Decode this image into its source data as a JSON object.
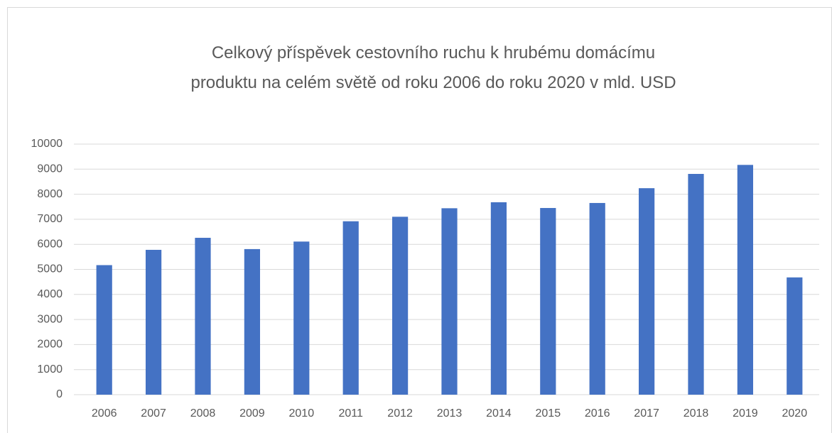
{
  "chart_data": {
    "type": "bar",
    "title": "Celkový příspěvek cestovního ruchu k hrubému domácímu produktu na celém světě od roku 2006 do roku 2020 v mld. USD",
    "categories": [
      "2006",
      "2007",
      "2008",
      "2009",
      "2010",
      "2011",
      "2012",
      "2013",
      "2014",
      "2015",
      "2016",
      "2017",
      "2018",
      "2019",
      "2020"
    ],
    "values": [
      5170,
      5780,
      6260,
      5810,
      6110,
      6920,
      7100,
      7440,
      7680,
      7450,
      7650,
      8240,
      8810,
      9170,
      4680
    ],
    "color": "#4472c4",
    "ylim": [
      0,
      10000
    ],
    "yticks": [
      0,
      1000,
      2000,
      3000,
      4000,
      5000,
      6000,
      7000,
      8000,
      9000,
      10000
    ],
    "grid": true
  }
}
